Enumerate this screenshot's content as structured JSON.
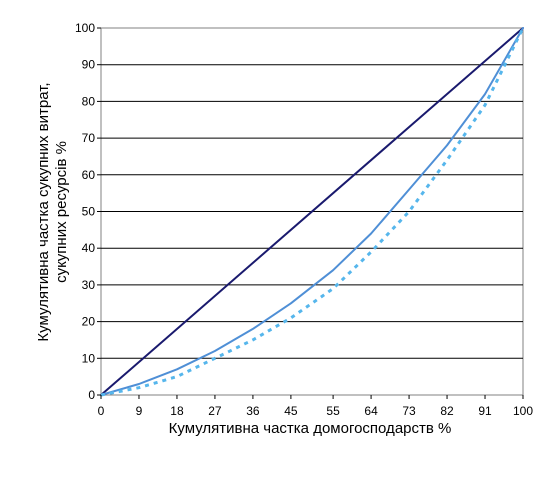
{
  "chart_data": {
    "type": "line",
    "title": "",
    "xlabel": "Кумулятивна частка домогосподарств  %",
    "ylabel_line1": "Кумулятивна частка сукупних витрат,",
    "ylabel_line2": "сукупних ресурсів %",
    "xlim": [
      0,
      100
    ],
    "ylim": [
      0,
      100
    ],
    "x_tick_labels": [
      "0",
      "9",
      "18",
      "27",
      "36",
      "45",
      "55",
      "64",
      "73",
      "82",
      "91",
      "100"
    ],
    "y_tick_labels": [
      "0",
      "10",
      "20",
      "30",
      "40",
      "50",
      "60",
      "70",
      "80",
      "90",
      "100"
    ],
    "grid": "horizontal",
    "legend": "none",
    "series": [
      {
        "color": "#1a1a6e",
        "style": "solid",
        "x": [
          0,
          100
        ],
        "y": [
          0,
          100
        ]
      },
      {
        "color": "#4f8fd6",
        "style": "solid",
        "x": [
          0,
          9,
          18,
          27,
          36,
          45,
          55,
          64,
          73,
          82,
          91,
          100
        ],
        "y": [
          0,
          3,
          7,
          12,
          18,
          25,
          34,
          44,
          56,
          68,
          82,
          100
        ]
      },
      {
        "color": "#56b6ec",
        "style": "dotted",
        "x": [
          0,
          9,
          18,
          27,
          36,
          45,
          55,
          64,
          73,
          82,
          91,
          100
        ],
        "y": [
          0,
          2,
          5,
          10,
          15,
          21,
          29,
          39,
          50,
          64,
          79,
          100
        ]
      }
    ]
  }
}
